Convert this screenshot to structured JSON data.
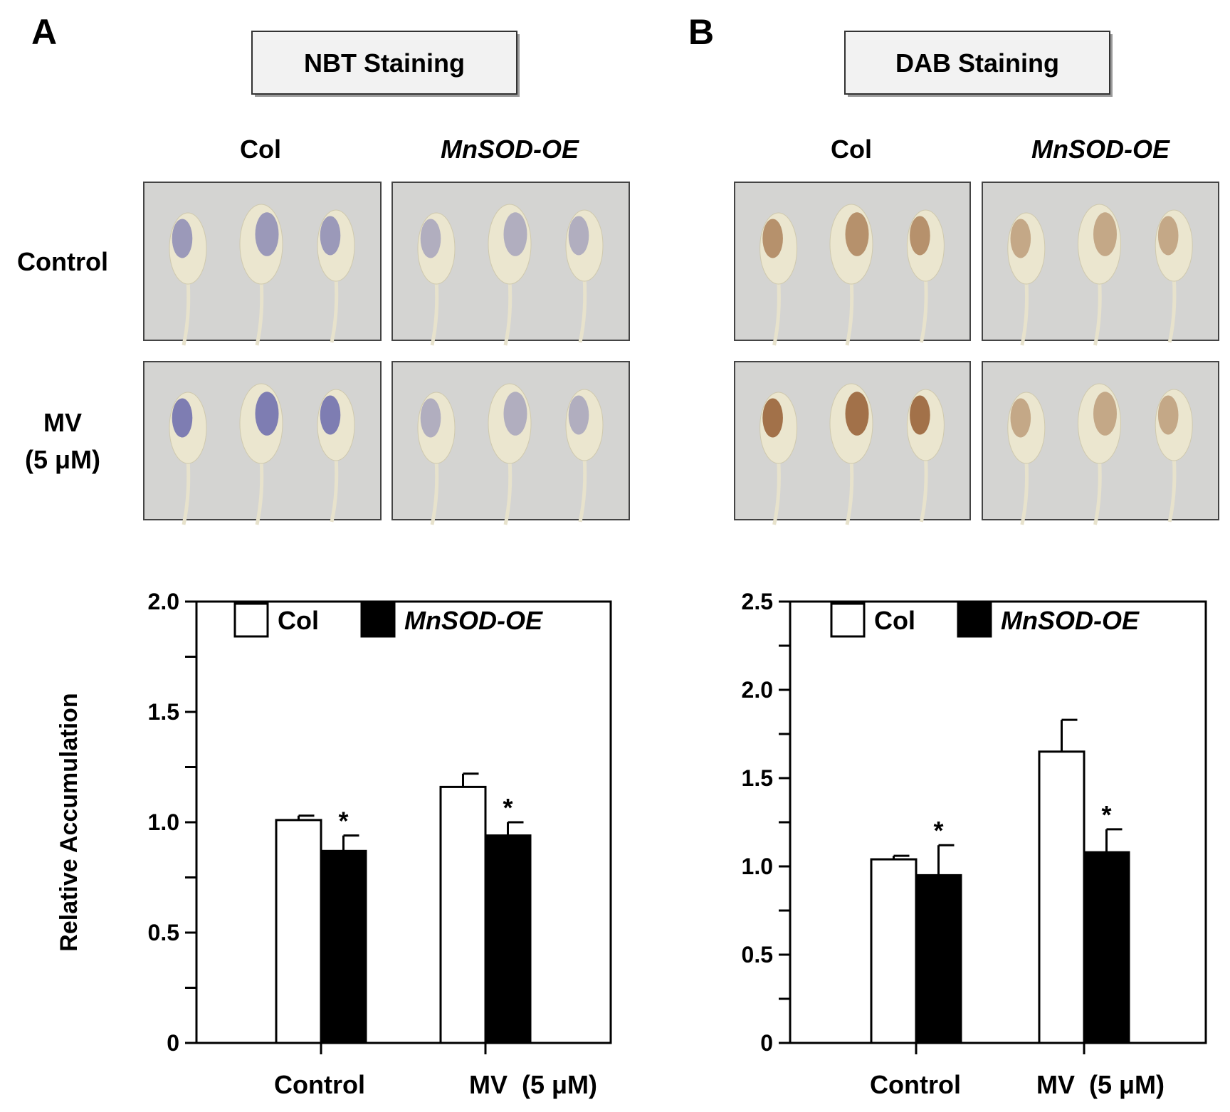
{
  "panels": [
    {
      "letter": "A",
      "title": "NBT Staining",
      "genotypes": [
        "Col",
        "MnSOD-OE"
      ],
      "rows": [
        {
          "lines": [
            "Control"
          ]
        },
        {
          "lines": [
            "MV",
            "(5 μM)"
          ]
        }
      ],
      "stain_color": "#5a5aa8"
    },
    {
      "letter": "B",
      "title": "DAB Staining",
      "genotypes": [
        "Col",
        "MnSOD-OE"
      ],
      "rows": [
        {
          "lines": [
            "Control"
          ]
        },
        {
          "lines": [
            "MV",
            "(5 μM)"
          ]
        }
      ],
      "stain_color": "#8a4a1c"
    }
  ],
  "chart_data": [
    {
      "type": "bar",
      "panel": "A",
      "categories": [
        "Control",
        "MV  (5 μM)"
      ],
      "series": [
        {
          "name": "Col",
          "values": [
            1.01,
            1.16
          ],
          "errors": [
            0.02,
            0.06
          ],
          "color": "#ffffff"
        },
        {
          "name": "MnSOD-OE",
          "values": [
            0.87,
            0.94
          ],
          "errors": [
            0.07,
            0.06
          ],
          "color": "#000000"
        }
      ],
      "significance": [
        [
          "",
          "*"
        ],
        [
          "",
          "*"
        ]
      ],
      "ylabel": "Relative Accumulation",
      "xlabel": "",
      "ylim": [
        0,
        2.0
      ],
      "yticks": [
        {
          "v": 0,
          "label": "0"
        },
        {
          "v": 0.5,
          "label": "0.5"
        },
        {
          "v": 1.0,
          "label": "1.0"
        },
        {
          "v": 1.5,
          "label": "1.5"
        },
        {
          "v": 2.0,
          "label": "2.0"
        }
      ],
      "minor_step": 0.25,
      "legend_position": "top"
    },
    {
      "type": "bar",
      "panel": "B",
      "categories": [
        "Control",
        "MV  (5 μM)"
      ],
      "series": [
        {
          "name": "Col",
          "values": [
            1.04,
            1.65
          ],
          "errors": [
            0.02,
            0.18
          ],
          "color": "#ffffff"
        },
        {
          "name": "MnSOD-OE",
          "values": [
            0.95,
            1.08
          ],
          "errors": [
            0.17,
            0.13
          ],
          "color": "#000000"
        }
      ],
      "significance": [
        [
          "",
          "*"
        ],
        [
          "",
          "*"
        ]
      ],
      "ylabel": "",
      "xlabel": "",
      "ylim": [
        0,
        2.5
      ],
      "yticks": [
        {
          "v": 0,
          "label": "0"
        },
        {
          "v": 0.5,
          "label": "0.5"
        },
        {
          "v": 1.0,
          "label": "1.0"
        },
        {
          "v": 1.5,
          "label": "1.5"
        },
        {
          "v": 2.0,
          "label": "2.0"
        },
        {
          "v": 2.5,
          "label": "2.5"
        }
      ],
      "minor_step": 0.25,
      "legend_position": "top"
    }
  ]
}
